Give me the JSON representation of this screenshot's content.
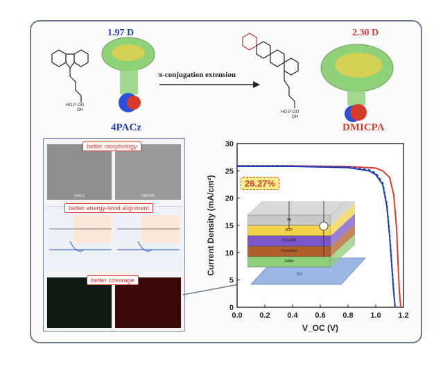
{
  "molecules": {
    "left": {
      "name": "4PACz",
      "dipole": "1.97 D",
      "name_color": "#1f3fbf",
      "dipole_color": "#1f3fbf"
    },
    "right": {
      "name": "DMICPA",
      "dipole": "2.30 D",
      "name_color": "#e03a2f",
      "dipole_color": "#e03a2f"
    },
    "arrow_label": "π-conjugation extension"
  },
  "panels": {
    "morphology": "better morphology",
    "energy": "better energy-level alignment",
    "coverage": "better coverage",
    "sem_left": "4PACz",
    "sem_right": "DMICPA"
  },
  "device": {
    "layers": [
      "Ag",
      "BCP",
      "PC61BM",
      "Perovskite",
      "SAMs",
      "ITO"
    ],
    "layer_colors": [
      "#c8c8c8",
      "#f2d34a",
      "#7a56c9",
      "#b0602a",
      "#8fcf7a",
      "#9ab7e6"
    ]
  },
  "efficiency_badge": "26.27%",
  "chart_data": {
    "type": "line",
    "xlabel": "V_OC (V)",
    "ylabel": "Current Density (mA/cm²)",
    "xlim": [
      0.0,
      1.2
    ],
    "ylim": [
      0,
      30
    ],
    "xticks": [
      "0.0",
      "0.2",
      "0.4",
      "0.6",
      "0.8",
      "1.0",
      "1.2"
    ],
    "yticks": [
      "0",
      "5",
      "10",
      "15",
      "20",
      "25",
      "30"
    ],
    "series": [
      {
        "color": "#e03a2f",
        "style": "solid",
        "x": [
          0.0,
          0.4,
          0.8,
          1.0,
          1.05,
          1.1,
          1.13,
          1.15,
          1.16,
          1.17,
          1.18
        ],
        "y": [
          25.9,
          25.9,
          25.8,
          25.5,
          25.0,
          23.8,
          20.5,
          14.5,
          8.5,
          3.0,
          0
        ]
      },
      {
        "color": "#1f3fbf",
        "style": "solid",
        "x": [
          0.0,
          0.4,
          0.8,
          0.95,
          1.0,
          1.05,
          1.08,
          1.1,
          1.12,
          1.13,
          1.14
        ],
        "y": [
          25.8,
          25.8,
          25.6,
          25.0,
          24.3,
          22.5,
          18.5,
          13.0,
          6.0,
          2.5,
          0
        ]
      },
      {
        "color": "#1f3fbf",
        "style": "dashed",
        "x": [
          0.0,
          0.4,
          0.8,
          0.95,
          1.0,
          1.05,
          1.08,
          1.1,
          1.12,
          1.13,
          1.14
        ],
        "y": [
          25.9,
          25.9,
          25.7,
          25.2,
          24.6,
          22.8,
          19.0,
          13.5,
          6.5,
          2.8,
          0
        ]
      }
    ]
  }
}
